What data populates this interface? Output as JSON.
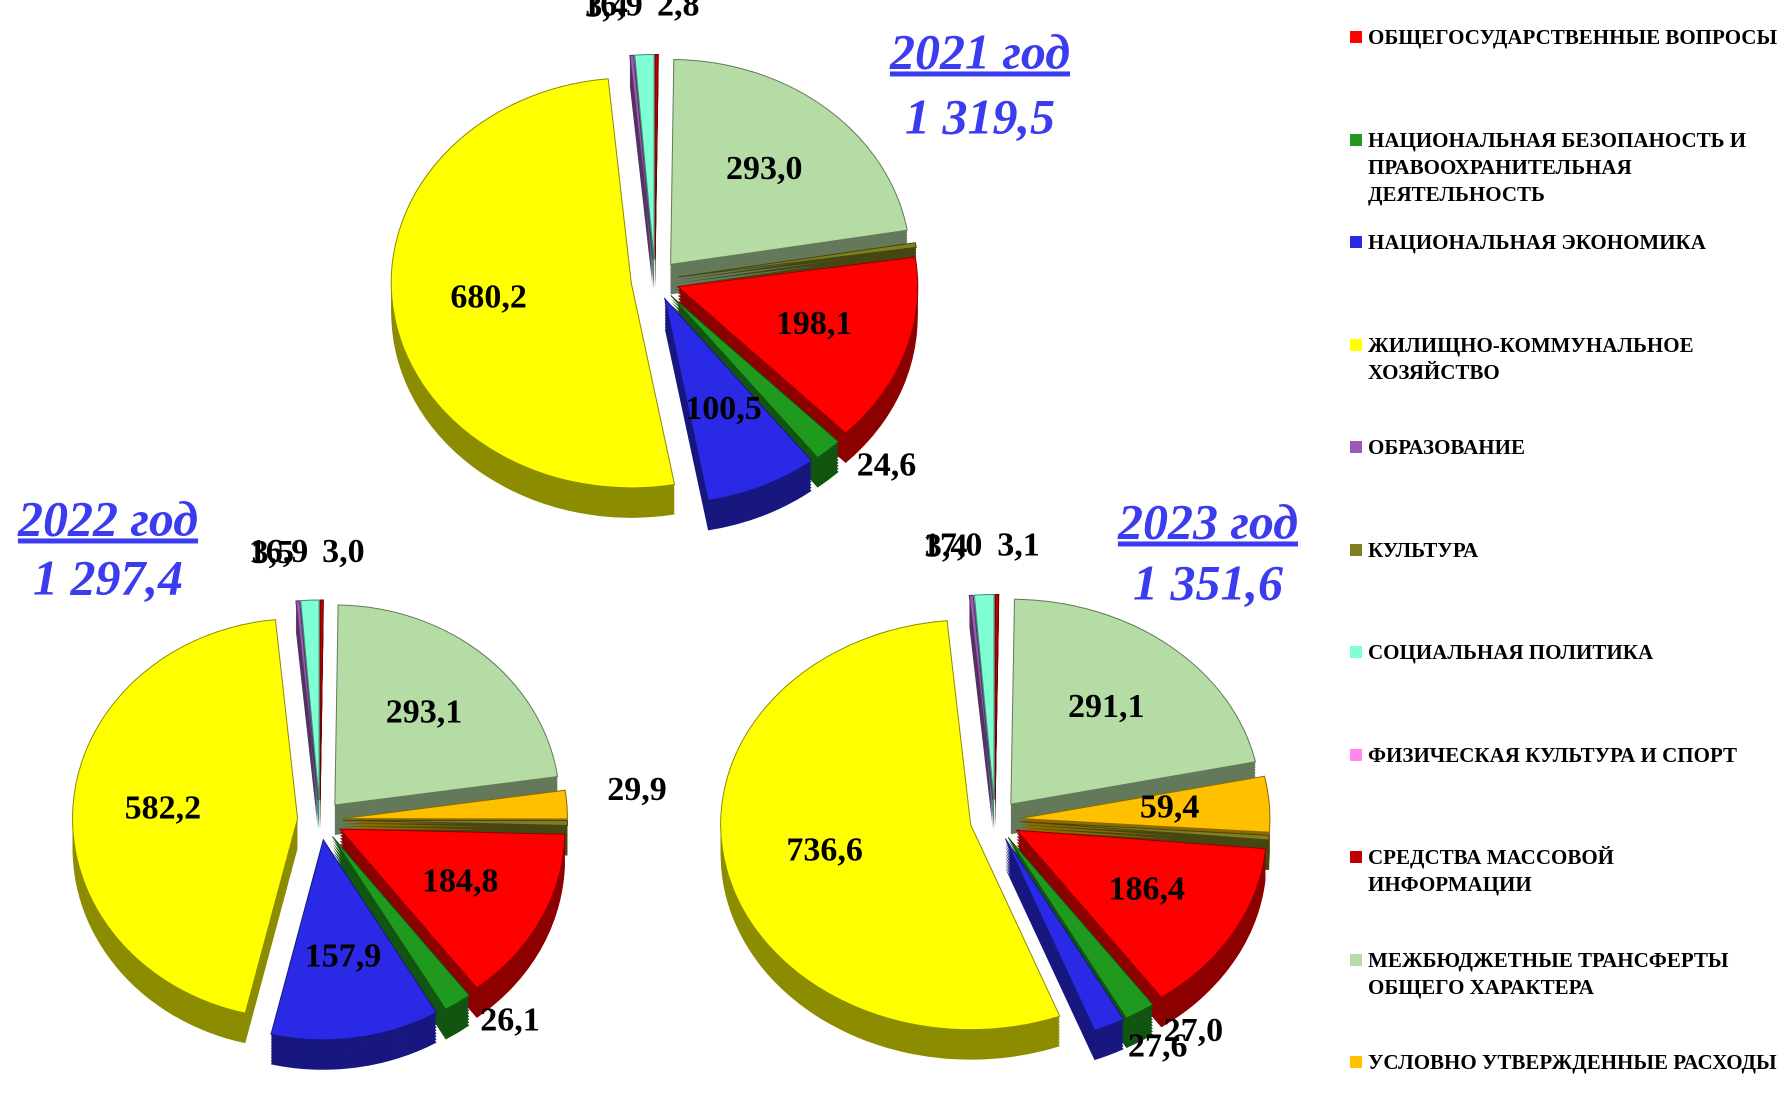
{
  "chart_data": [
    {
      "type": "pie",
      "title": "2021 год",
      "subtitle": "1 319,5",
      "categories": [
        "ОБЩЕГОСУДАРСТВЕННЫЕ ВОПРОСЫ",
        "НАЦИОНАЛЬНАЯ БЕЗОПАНОСТЬ И ПРАВООХРАНИТЕЛЬНАЯ ДЕЯТЕЛЬНОСТЬ",
        "НАЦИОНАЛЬНАЯ ЭКОНОМИКА",
        "ЖИЛИЩНО-КОММУНАЛЬНОЕ ХОЗЯЙСТВО",
        "ОБРАЗОВАНИЕ",
        "КУЛЬТУРА",
        "СОЦИАЛЬНАЯ ПОЛИТИКА",
        "ФИЗИЧЕСКАЯ КУЛЬТУРА И СПОРТ",
        "СРЕДСТВА МАССОВОЙ ИНФОРМАЦИИ",
        "МЕЖБЮДЖЕТНЫЕ ТРАНСФЕРТЫ ОБЩЕГО ХАРАКТЕРА",
        "УСЛОВНО УТВЕРЖДЕННЫЕ РАСХОДЫ"
      ],
      "colors": [
        "#ff0000",
        "#1f9a1f",
        "#2a2ae6",
        "#ffff00",
        "#9b59b6",
        "#7f7f20",
        "#7fffd4",
        "#ff88ee",
        "#c00000",
        "#b4dca4",
        "#ffc000"
      ],
      "values": [
        198.1,
        24.6,
        100.5,
        680.2,
        3.4,
        5,
        16.9,
        null,
        2.8,
        293.0,
        null
      ],
      "value_labels": [
        "198,1",
        "24,6",
        "100,5",
        "680,2",
        "3,4",
        null,
        "16,9",
        null,
        "2,8",
        "293,0",
        null
      ]
    },
    {
      "type": "pie",
      "title": "2022 год",
      "subtitle": "1 297,4",
      "categories": [
        "ОБЩЕГОСУДАРСТВЕННЫЕ ВОПРОСЫ",
        "НАЦИОНАЛЬНАЯ БЕЗОПАНОСТЬ И ПРАВООХРАНИТЕЛЬНАЯ ДЕЯТЕЛЬНОСТЬ",
        "НАЦИОНАЛЬНАЯ ЭКОНОМИКА",
        "ЖИЛИЩНО-КОММУНАЛЬНОЕ ХОЗЯЙСТВО",
        "ОБРАЗОВАНИЕ",
        "КУЛЬТУРА",
        "СОЦИАЛЬНАЯ ПОЛИТИКА",
        "ФИЗИЧЕСКАЯ КУЛЬТУРА И СПОРТ",
        "СРЕДСТВА МАССОВОЙ ИНФОРМАЦИИ",
        "МЕЖБЮДЖЕТНЫЕ ТРАНСФЕРТЫ ОБЩЕГО ХАРАКТЕРА",
        "УСЛОВНО УТВЕРЖДЕННЫЕ РАСХОДЫ"
      ],
      "colors": [
        "#ff0000",
        "#1f9a1f",
        "#2a2ae6",
        "#ffff00",
        "#9b59b6",
        "#7f7f20",
        "#7fffd4",
        "#ff88ee",
        "#c00000",
        "#b4dca4",
        "#ffc000"
      ],
      "values": [
        184.8,
        26.1,
        157.9,
        582.2,
        3.5,
        5,
        16.9,
        null,
        3.0,
        293.1,
        29.9
      ],
      "value_labels": [
        "184,8",
        "26,1",
        "157,9",
        "582,2",
        "3,5",
        null,
        "16,9",
        null,
        "3,0",
        "293,1",
        "29,9"
      ]
    },
    {
      "type": "pie",
      "title": "2023 год",
      "subtitle": "1 351,6",
      "categories": [
        "ОБЩЕГОСУДАРСТВЕННЫЕ ВОПРОСЫ",
        "НАЦИОНАЛЬНАЯ БЕЗОПАНОСТЬ И ПРАВООХРАНИТЕЛЬНАЯ ДЕЯТЕЛЬНОСТЬ",
        "НАЦИОНАЛЬНАЯ ЭКОНОМИКА",
        "ЖИЛИЩНО-КОММУНАЛЬНОЕ ХОЗЯЙСТВО",
        "ОБРАЗОВАНИЕ",
        "КУЛЬТУРА",
        "СОЦИАЛЬНАЯ ПОЛИТИКА",
        "ФИЗИЧЕСКАЯ КУЛЬТУРА И СПОРТ",
        "СРЕДСТВА МАССОВОЙ ИНФОРМАЦИИ",
        "МЕЖБЮДЖЕТНЫЕ ТРАНСФЕРТЫ ОБЩЕГО ХАРАКТЕРА",
        "УСЛОВНО УТВЕРЖДЕННЫЕ РАСХОДЫ"
      ],
      "colors": [
        "#ff0000",
        "#1f9a1f",
        "#2a2ae6",
        "#ffff00",
        "#9b59b6",
        "#7f7f20",
        "#7fffd4",
        "#ff88ee",
        "#c00000",
        "#b4dca4",
        "#ffc000"
      ],
      "values": [
        186.4,
        27.0,
        27.6,
        736.6,
        3.4,
        5,
        17.0,
        null,
        3.1,
        291.1,
        59.4
      ],
      "value_labels": [
        "186,4",
        "27,0",
        "27,6",
        "736,6",
        "3,4",
        null,
        "17,0",
        null,
        "3,1",
        "291,1",
        "59,4"
      ]
    }
  ]
}
